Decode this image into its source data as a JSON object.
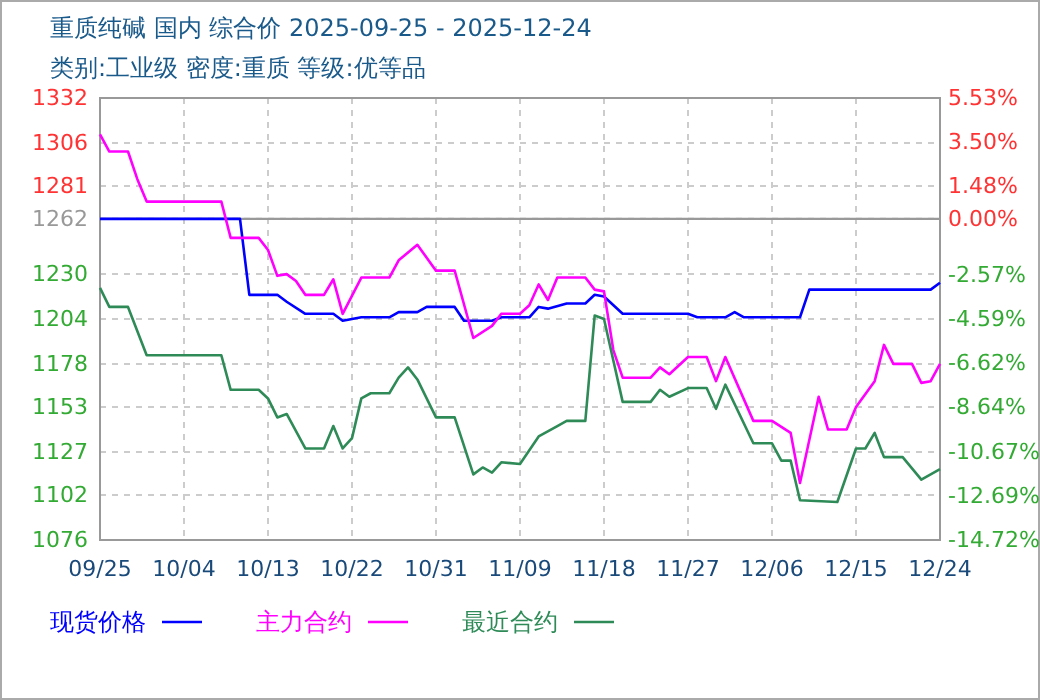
{
  "chart_data": {
    "type": "line",
    "title": "重质纯碱 国内 综合价 2025-09-25 - 2025-12-24",
    "subtitle": "类别:工业级 密度:重质 等级:优等品",
    "xlim": [
      "2025-09-25",
      "2025-12-24"
    ],
    "xticks": [
      {
        "value": "2025-09-25",
        "label": "09/25"
      },
      {
        "value": "2025-10-04",
        "label": "10/04"
      },
      {
        "value": "2025-10-13",
        "label": "10/13"
      },
      {
        "value": "2025-10-22",
        "label": "10/22"
      },
      {
        "value": "2025-10-31",
        "label": "10/31"
      },
      {
        "value": "2025-11-09",
        "label": "11/09"
      },
      {
        "value": "2025-11-18",
        "label": "11/18"
      },
      {
        "value": "2025-11-27",
        "label": "11/27"
      },
      {
        "value": "2025-12-06",
        "label": "12/06"
      },
      {
        "value": "2025-12-15",
        "label": "12/15"
      },
      {
        "value": "2025-12-24",
        "label": "12/24"
      }
    ],
    "ylim": [
      1076,
      1332
    ],
    "yticks": [
      1076,
      1102,
      1127,
      1153,
      1178,
      1204,
      1230,
      1262,
      1281,
      1306,
      1332
    ],
    "y2lim": [
      -14.72,
      5.53
    ],
    "y2ticks": [
      {
        "value": -14.72,
        "label": "-14.72%"
      },
      {
        "value": -12.69,
        "label": "-12.69%"
      },
      {
        "value": -10.67,
        "label": "-10.67%"
      },
      {
        "value": -8.64,
        "label": "-8.64%"
      },
      {
        "value": -6.62,
        "label": "-6.62%"
      },
      {
        "value": -4.59,
        "label": "-4.59%"
      },
      {
        "value": -2.57,
        "label": "-2.57%"
      },
      {
        "value": 0,
        "label": "0.00%"
      },
      {
        "value": 1.48,
        "label": "1.48%"
      },
      {
        "value": 3.5,
        "label": "3.50%"
      },
      {
        "value": 5.53,
        "label": "5.53%"
      }
    ],
    "ref_lines": [
      {
        "axis": "y",
        "value": 1262,
        "color": "#999999"
      }
    ],
    "grid": true,
    "legend": "bottom",
    "marker": "none",
    "series": [
      {
        "name": "现货价格",
        "color": "#0000ff",
        "x": [
          "2025-09-25",
          "2025-10-10",
          "2025-10-11",
          "2025-10-14",
          "2025-10-15",
          "2025-10-17",
          "2025-10-20",
          "2025-10-21",
          "2025-10-23",
          "2025-10-26",
          "2025-10-27",
          "2025-10-29",
          "2025-10-30",
          "2025-11-02",
          "2025-11-03",
          "2025-11-06",
          "2025-11-07",
          "2025-11-10",
          "2025-11-11",
          "2025-11-12",
          "2025-11-14",
          "2025-11-16",
          "2025-11-17",
          "2025-11-18",
          "2025-11-20",
          "2025-11-27",
          "2025-11-28",
          "2025-12-01",
          "2025-12-02",
          "2025-12-03",
          "2025-12-09",
          "2025-12-10",
          "2025-12-23",
          "2025-12-24"
        ],
        "values": [
          1262,
          1262,
          1218,
          1218,
          1214,
          1207,
          1207,
          1203,
          1205,
          1205,
          1208,
          1208,
          1211,
          1211,
          1203,
          1203,
          1205,
          1205,
          1211,
          1210,
          1213,
          1213,
          1218,
          1217,
          1207,
          1207,
          1205,
          1205,
          1208,
          1205,
          1205,
          1221,
          1221,
          1225
        ]
      },
      {
        "name": "主力合约",
        "color": "#ff00ff",
        "x": [
          "2025-09-25",
          "2025-09-26",
          "2025-09-28",
          "2025-09-29",
          "2025-09-30",
          "2025-10-08",
          "2025-10-09",
          "2025-10-12",
          "2025-10-13",
          "2025-10-14",
          "2025-10-15",
          "2025-10-16",
          "2025-10-17",
          "2025-10-19",
          "2025-10-20",
          "2025-10-21",
          "2025-10-23",
          "2025-10-26",
          "2025-10-27",
          "2025-10-29",
          "2025-10-31",
          "2025-11-02",
          "2025-11-04",
          "2025-11-06",
          "2025-11-07",
          "2025-11-09",
          "2025-11-10",
          "2025-11-11",
          "2025-11-12",
          "2025-11-13",
          "2025-11-16",
          "2025-11-17",
          "2025-11-18",
          "2025-11-19",
          "2025-11-20",
          "2025-11-23",
          "2025-11-24",
          "2025-11-25",
          "2025-11-27",
          "2025-11-29",
          "2025-11-30",
          "2025-12-01",
          "2025-12-04",
          "2025-12-06",
          "2025-12-08",
          "2025-12-09",
          "2025-12-11",
          "2025-12-12",
          "2025-12-14",
          "2025-12-15",
          "2025-12-17",
          "2025-12-18",
          "2025-12-19",
          "2025-12-21",
          "2025-12-22",
          "2025-12-23",
          "2025-12-24"
        ],
        "values": [
          1311,
          1301,
          1301,
          1285,
          1272,
          1272,
          1251,
          1251,
          1244,
          1229,
          1230,
          1226,
          1218,
          1218,
          1227,
          1207,
          1228,
          1228,
          1238,
          1247,
          1232,
          1232,
          1193,
          1200,
          1207,
          1207,
          1212,
          1224,
          1215,
          1228,
          1228,
          1221,
          1220,
          1186,
          1170,
          1170,
          1176,
          1172,
          1182,
          1182,
          1168,
          1182,
          1145,
          1145,
          1138,
          1109,
          1159,
          1140,
          1140,
          1153,
          1168,
          1189,
          1178,
          1178,
          1167,
          1168,
          1178
        ]
      },
      {
        "name": "最近合约",
        "color": "#2e8b57",
        "x": [
          "2025-09-25",
          "2025-09-26",
          "2025-09-28",
          "2025-09-30",
          "2025-10-08",
          "2025-10-09",
          "2025-10-12",
          "2025-10-13",
          "2025-10-14",
          "2025-10-15",
          "2025-10-17",
          "2025-10-19",
          "2025-10-20",
          "2025-10-21",
          "2025-10-22",
          "2025-10-23",
          "2025-10-24",
          "2025-10-26",
          "2025-10-27",
          "2025-10-28",
          "2025-10-29",
          "2025-10-31",
          "2025-11-02",
          "2025-11-04",
          "2025-11-05",
          "2025-11-06",
          "2025-11-07",
          "2025-11-09",
          "2025-11-11",
          "2025-11-13",
          "2025-11-14",
          "2025-11-16",
          "2025-11-17",
          "2025-11-18",
          "2025-11-20",
          "2025-11-23",
          "2025-11-24",
          "2025-11-25",
          "2025-11-27",
          "2025-11-29",
          "2025-11-30",
          "2025-12-01",
          "2025-12-04",
          "2025-12-06",
          "2025-12-07",
          "2025-12-08",
          "2025-12-09",
          "2025-12-13",
          "2025-12-15",
          "2025-12-16",
          "2025-12-17",
          "2025-12-18",
          "2025-12-20",
          "2025-12-22",
          "2025-12-24"
        ],
        "values": [
          1222,
          1211,
          1211,
          1183,
          1183,
          1163,
          1163,
          1158,
          1147,
          1149,
          1129,
          1129,
          1142,
          1129,
          1135,
          1158,
          1161,
          1161,
          1170,
          1176,
          1169,
          1147,
          1147,
          1114,
          1118,
          1115,
          1121,
          1120,
          1136,
          1142,
          1145,
          1145,
          1206,
          1204,
          1156,
          1156,
          1163,
          1159,
          1164,
          1164,
          1152,
          1166,
          1132,
          1132,
          1122,
          1122,
          1099,
          1098,
          1129,
          1129,
          1138,
          1124,
          1124,
          1111,
          1117
        ]
      }
    ]
  }
}
